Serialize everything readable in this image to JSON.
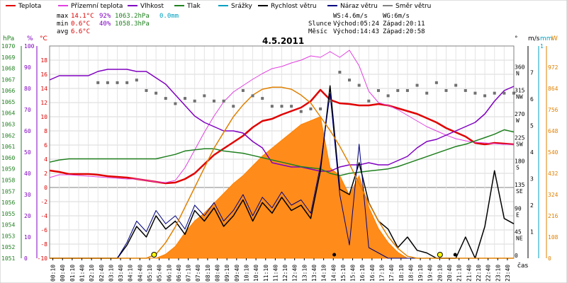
{
  "chart_data": {
    "type": "line",
    "title": "4.5.2011",
    "legend": [
      {
        "label": "Teplota",
        "color": "#e00000"
      },
      {
        "label": "Přízemní teplota",
        "color": "#e040e0"
      },
      {
        "label": "Vlhkost",
        "color": "#8000c0"
      },
      {
        "label": "Tlak",
        "color": "#208020"
      },
      {
        "label": "Srážky",
        "color": "#00a0c0"
      },
      {
        "label": "Rychlost větru",
        "color": "#000000"
      },
      {
        "label": "Náraz větru",
        "color": "#000080"
      },
      {
        "label": "Směr větru",
        "color": "#808080"
      }
    ],
    "stats": {
      "max_label": "max",
      "max_temp": "14.1°C",
      "max_hum": "92%",
      "max_press": "1063.2hPa",
      "max_rain": "0.0mm",
      "min_label": "min",
      "min_temp": "0.6°C",
      "min_hum": "40%",
      "min_press": "1058.3hPa",
      "avg_label": "avg",
      "avg_temp": "6.6°C"
    },
    "info": {
      "ws": "WS:4.6m/s",
      "wg": "WG:6m/s",
      "sun_label": "Slunce",
      "sun_rise": "Východ:05:24",
      "sun_set": "Západ:20:11",
      "moon_label": "Měsíc",
      "moon_rise": "Východ:14:43",
      "moon_set": "Západ:20:58"
    },
    "axis_units": {
      "hpa": "hPa",
      "pct": "%",
      "degc": "°C",
      "deg": "°",
      "ms": "m/s",
      "mm": "mm",
      "w": "W",
      "time": "čas"
    },
    "x_ticks": [
      "00:10",
      "00:40",
      "01:10",
      "01:40",
      "02:10",
      "02:40",
      "03:10",
      "03:40",
      "04:10",
      "04:40",
      "05:10",
      "05:40",
      "06:10",
      "06:40",
      "07:10",
      "07:40",
      "08:10",
      "08:40",
      "09:10",
      "09:40",
      "10:10",
      "10:40",
      "11:10",
      "11:40",
      "12:10",
      "12:40",
      "13:10",
      "13:40",
      "14:10",
      "14:40",
      "15:10",
      "15:40",
      "16:10",
      "16:40",
      "17:10",
      "17:40",
      "18:10",
      "18:40",
      "19:10",
      "19:40",
      "20:10",
      "20:40",
      "21:10",
      "21:40",
      "22:10",
      "22:40",
      "23:10",
      "23:40"
    ],
    "axes": {
      "pressure": {
        "label": "hPa",
        "range": [
          1051,
          1070
        ],
        "ticks": [
          "1070",
          "1069",
          "1068",
          "1067",
          "1066",
          "1065",
          "1064",
          "1063",
          "1062",
          "1061",
          "1060",
          "1059",
          "1058",
          "1057",
          "1056",
          "1055",
          "1054",
          "1053",
          "1052",
          "1051"
        ]
      },
      "humidity": {
        "label": "%",
        "range": [
          0,
          100
        ],
        "ticks": [
          "100",
          "90",
          "80",
          "70",
          "60",
          "50",
          "40",
          "30",
          "20",
          "10",
          "0"
        ]
      },
      "temperature": {
        "label": "°C",
        "range": [
          -10,
          20
        ],
        "ticks": [
          "18",
          "16",
          "14",
          "12",
          "10",
          "8",
          "6",
          "4",
          "2",
          "0",
          "-2",
          "-4",
          "-6",
          "-8",
          "-10"
        ]
      },
      "direction": {
        "label": "°",
        "ticks": [
          {
            "deg": "360",
            "dir": "N"
          },
          {
            "deg": "315",
            "dir": "NW"
          },
          {
            "deg": "270",
            "dir": "W"
          },
          {
            "deg": "225",
            "dir": "SW"
          },
          {
            "deg": "180",
            "dir": "S"
          },
          {
            "deg": "135",
            "dir": "SE"
          },
          {
            "deg": "90",
            "dir": "E"
          },
          {
            "deg": "45",
            "dir": "NE"
          },
          {
            "deg": "0",
            "dir": ""
          }
        ]
      },
      "wind": {
        "label": "m/s",
        "range": [
          0,
          8
        ],
        "ticks": [
          "7",
          "6",
          "5",
          "4",
          "3",
          "2",
          "1"
        ]
      },
      "rain": {
        "label": "mm",
        "ticks": [
          "1"
        ]
      },
      "solar": {
        "label": "W",
        "range": [
          0,
          1080
        ],
        "ticks": [
          "972",
          "864",
          "756",
          "648",
          "540",
          "432",
          "324",
          "216",
          "108",
          "0"
        ]
      }
    },
    "series_hours": [
      0,
      0.5,
      1,
      1.5,
      2,
      2.5,
      3,
      3.5,
      4,
      4.5,
      5,
      5.5,
      6,
      6.5,
      7,
      7.5,
      8,
      8.5,
      9,
      9.5,
      10,
      10.5,
      11,
      11.5,
      12,
      12.5,
      13,
      13.5,
      14,
      14.5,
      15,
      15.5,
      16,
      16.5,
      17,
      17.5,
      18,
      18.5,
      19,
      19.5,
      20,
      20.5,
      21,
      21.5,
      22,
      22.5,
      23,
      23.5,
      24
    ],
    "series": [
      {
        "name": "Teplota",
        "axis": "temperature",
        "color": "#e00000",
        "values": [
          2.4,
          2.2,
          1.9,
          1.9,
          1.9,
          1.8,
          1.6,
          1.5,
          1.4,
          1.2,
          1.0,
          0.8,
          0.6,
          0.7,
          1.2,
          2.0,
          3.3,
          4.6,
          5.5,
          6.4,
          7.3,
          8.5,
          9.4,
          9.7,
          10.3,
          10.8,
          11.3,
          12.2,
          13.8,
          12.4,
          11.9,
          11.8,
          11.6,
          11.6,
          11.8,
          11.6,
          11.2,
          10.8,
          10.4,
          9.8,
          9.2,
          8.4,
          7.8,
          7.2,
          6.3,
          6.1,
          6.3,
          6.2,
          6.1
        ]
      },
      {
        "name": "Přízemní teplota",
        "axis": "temperature",
        "color": "#e040e0",
        "values": [
          1.4,
          1.8,
          1.8,
          1.7,
          1.6,
          1.5,
          1.4,
          1.3,
          1.2,
          1.2,
          1.0,
          0.8,
          0.7,
          1.0,
          2.8,
          5.3,
          7.8,
          10.1,
          12.1,
          13.5,
          14.4,
          15.3,
          16.1,
          16.8,
          17.1,
          17.6,
          18.0,
          18.6,
          18.4,
          19.2,
          18.4,
          19.4,
          17.2,
          13.6,
          12.0,
          11.6,
          11.0,
          10.2,
          9.4,
          8.6,
          8.0,
          7.4,
          6.9,
          6.6,
          6.4,
          6.3,
          6.2,
          6.1,
          6.1
        ]
      },
      {
        "name": "Vlhkost",
        "axis": "humidity",
        "color": "#8000c0",
        "values": [
          84,
          86,
          86,
          86,
          86,
          88,
          89,
          89,
          89,
          88,
          88,
          85,
          82,
          77,
          72,
          67,
          64,
          62,
          60,
          60,
          59,
          55,
          52,
          45,
          44,
          43,
          43,
          42,
          41,
          41,
          43,
          44,
          44,
          45,
          44,
          44,
          46,
          48,
          52,
          55,
          56,
          58,
          60,
          62,
          64,
          68,
          74,
          79,
          81
        ]
      },
      {
        "name": "Tlak",
        "axis": "pressure",
        "color": "#208020",
        "values": [
          1059.6,
          1059.8,
          1059.9,
          1059.9,
          1059.9,
          1059.9,
          1059.9,
          1059.9,
          1059.9,
          1059.9,
          1059.9,
          1059.9,
          1060.1,
          1060.3,
          1060.6,
          1060.7,
          1060.8,
          1060.8,
          1060.6,
          1060.5,
          1060.4,
          1060.2,
          1060.0,
          1059.8,
          1059.6,
          1059.4,
          1059.2,
          1059.1,
          1059.0,
          1058.6,
          1058.4,
          1058.6,
          1058.7,
          1058.8,
          1058.9,
          1059.0,
          1059.2,
          1059.5,
          1059.8,
          1060.1,
          1060.4,
          1060.7,
          1061.0,
          1061.2,
          1061.5,
          1061.8,
          1062.1,
          1062.5,
          1062.3
        ]
      },
      {
        "name": "Rychlost větru",
        "axis": "wind",
        "color": "#000000",
        "values": [
          0,
          0,
          0,
          0,
          0,
          0,
          0,
          0,
          0.5,
          1.2,
          0.8,
          1.6,
          1.1,
          1.4,
          0.9,
          1.8,
          1.4,
          1.9,
          1.2,
          1.6,
          2.2,
          1.4,
          2.1,
          1.7,
          2.3,
          1.8,
          2.0,
          1.5,
          3.3,
          6.5,
          2.6,
          2.4,
          3.6,
          2.1,
          1.4,
          1.1,
          0.4,
          0.8,
          0.3,
          0.2,
          0,
          0,
          0,
          0.8,
          0,
          1.2,
          3.3,
          1.5,
          1.3
        ]
      },
      {
        "name": "Náraz větru",
        "axis": "wind",
        "color": "#000080",
        "values": [
          0,
          0,
          0,
          0,
          0,
          0,
          0,
          0,
          0.6,
          1.4,
          1.0,
          1.8,
          1.3,
          1.6,
          1.1,
          2.0,
          1.6,
          2.1,
          1.4,
          1.8,
          2.4,
          1.6,
          2.3,
          1.9,
          2.5,
          2.0,
          2.2,
          1.7,
          3.5,
          6.2,
          2.4,
          0.5,
          4.3,
          0.4,
          0.2,
          0,
          0,
          0,
          0,
          0,
          0,
          0,
          0,
          0,
          0,
          0,
          0,
          0,
          0
        ]
      },
      {
        "name": "Solar",
        "axis": "solar",
        "color": "#ff8000",
        "values": [
          0,
          0,
          0,
          0,
          0,
          0,
          0,
          0,
          0,
          0,
          0,
          0,
          20,
          60,
          130,
          190,
          230,
          280,
          330,
          380,
          420,
          470,
          520,
          560,
          600,
          640,
          680,
          700,
          720,
          460,
          420,
          320,
          420,
          260,
          150,
          80,
          30,
          0,
          0,
          0,
          0,
          0,
          0,
          0,
          0,
          0,
          0,
          0,
          0
        ]
      },
      {
        "name": "Solar max",
        "axis": "solar",
        "color": "#e08000",
        "values": [
          0,
          0,
          0,
          0,
          0,
          0,
          0,
          0,
          0,
          0,
          0,
          20,
          80,
          160,
          260,
          360,
          460,
          560,
          640,
          720,
          780,
          830,
          860,
          870,
          870,
          860,
          830,
          790,
          720,
          650,
          570,
          480,
          380,
          280,
          190,
          110,
          50,
          10,
          0,
          0,
          0,
          0,
          0,
          0,
          0,
          0,
          0,
          0,
          0
        ]
      },
      {
        "name": "Směr větru",
        "axis": "direction",
        "color": "#808080",
        "values": [
          null,
          null,
          null,
          null,
          null,
          335,
          335,
          335,
          335,
          340,
          320,
          315,
          305,
          295,
          305,
          300,
          310,
          300,
          300,
          290,
          320,
          310,
          305,
          290,
          290,
          290,
          280,
          285,
          285,
          300,
          355,
          340,
          330,
          300,
          320,
          310,
          320,
          320,
          330,
          315,
          335,
          320,
          330,
          320,
          315,
          310,
          315,
          315,
          315
        ]
      }
    ]
  }
}
